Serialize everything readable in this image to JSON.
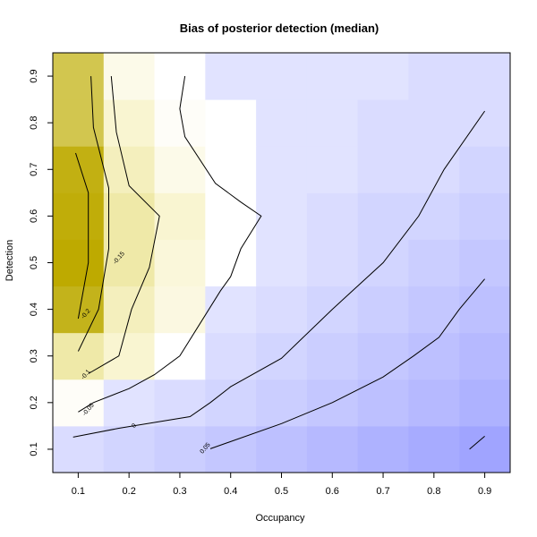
{
  "chart_data": {
    "type": "heatmap",
    "title": "Bias of posterior detection (median)",
    "xlabel": "Occupancy",
    "ylabel": "Detection",
    "x": [
      0.1,
      0.2,
      0.3,
      0.4,
      0.5,
      0.6,
      0.7,
      0.8,
      0.9
    ],
    "y": [
      0.1,
      0.2,
      0.3,
      0.4,
      0.5,
      0.6,
      0.7,
      0.8,
      0.9
    ],
    "xlim": [
      0.05,
      0.95
    ],
    "ylim": [
      0.05,
      0.95
    ],
    "xticks": [
      "0.1",
      "0.2",
      "0.3",
      "0.4",
      "0.5",
      "0.6",
      "0.7",
      "0.8",
      "0.9"
    ],
    "yticks": [
      "0.1",
      "0.2",
      "0.3",
      "0.4",
      "0.5",
      "0.6",
      "0.7",
      "0.8",
      "0.9"
    ],
    "z": [
      [
        -0.02,
        -0.03,
        -0.04,
        -0.05,
        -0.06,
        -0.07,
        -0.08,
        -0.09,
        -0.1
      ],
      [
        0.01,
        -0.01,
        -0.02,
        -0.03,
        -0.04,
        -0.05,
        -0.06,
        -0.07,
        -0.08
      ],
      [
        0.1,
        0.06,
        0.0,
        -0.02,
        -0.03,
        -0.04,
        -0.05,
        -0.06,
        -0.07
      ],
      [
        0.19,
        0.08,
        0.04,
        -0.01,
        -0.02,
        -0.03,
        -0.04,
        -0.05,
        -0.06
      ],
      [
        0.22,
        0.1,
        0.05,
        0.0,
        -0.01,
        -0.02,
        -0.03,
        -0.04,
        -0.05
      ],
      [
        0.21,
        0.1,
        0.06,
        0.0,
        -0.01,
        -0.02,
        -0.03,
        -0.03,
        -0.04
      ],
      [
        0.2,
        0.08,
        0.03,
        0.0,
        -0.01,
        -0.01,
        -0.02,
        -0.02,
        -0.03
      ],
      [
        0.15,
        0.06,
        0.01,
        0.0,
        -0.01,
        -0.01,
        -0.02,
        -0.02,
        -0.02
      ],
      [
        0.15,
        0.03,
        0.0,
        -0.01,
        -0.01,
        -0.01,
        -0.01,
        -0.02,
        -0.02
      ]
    ],
    "contour_labels": [
      {
        "text": "-0.2",
        "x": 0.115,
        "y": 0.39
      },
      {
        "text": "-0.15",
        "x": 0.18,
        "y": 0.51
      },
      {
        "text": "-0.1",
        "x": 0.115,
        "y": 0.26
      },
      {
        "text": "-0.05",
        "x": 0.12,
        "y": 0.185
      },
      {
        "text": "0",
        "x": 0.21,
        "y": 0.15
      },
      {
        "text": "0.05",
        "x": 0.35,
        "y": 0.102
      }
    ],
    "contours": [
      [
        [
          0.1,
          0.38
        ],
        [
          0.12,
          0.5
        ],
        [
          0.12,
          0.65
        ],
        [
          0.095,
          0.735
        ]
      ],
      [
        [
          0.1,
          0.31
        ],
        [
          0.14,
          0.4
        ],
        [
          0.16,
          0.53
        ],
        [
          0.16,
          0.66
        ],
        [
          0.13,
          0.79
        ],
        [
          0.125,
          0.9
        ]
      ],
      [
        [
          0.12,
          0.262
        ],
        [
          0.18,
          0.3
        ],
        [
          0.205,
          0.4
        ],
        [
          0.24,
          0.49
        ],
        [
          0.26,
          0.6
        ],
        [
          0.2,
          0.665
        ],
        [
          0.175,
          0.78
        ],
        [
          0.165,
          0.9
        ]
      ],
      [
        [
          0.1,
          0.18
        ],
        [
          0.13,
          0.2
        ],
        [
          0.2,
          0.23
        ],
        [
          0.25,
          0.26
        ],
        [
          0.3,
          0.3
        ],
        [
          0.34,
          0.37
        ],
        [
          0.38,
          0.44
        ],
        [
          0.4,
          0.47
        ],
        [
          0.42,
          0.53
        ],
        [
          0.46,
          0.6
        ],
        [
          0.42,
          0.63
        ],
        [
          0.37,
          0.67
        ],
        [
          0.31,
          0.77
        ],
        [
          0.3,
          0.83
        ],
        [
          0.31,
          0.9
        ]
      ],
      [
        [
          0.09,
          0.126
        ],
        [
          0.18,
          0.145
        ],
        [
          0.32,
          0.17
        ],
        [
          0.36,
          0.2
        ],
        [
          0.4,
          0.234
        ],
        [
          0.5,
          0.295
        ],
        [
          0.6,
          0.4
        ],
        [
          0.7,
          0.5
        ],
        [
          0.77,
          0.6
        ],
        [
          0.82,
          0.7
        ],
        [
          0.9,
          0.825
        ]
      ],
      [
        [
          0.36,
          0.101
        ],
        [
          0.5,
          0.155
        ],
        [
          0.6,
          0.2
        ],
        [
          0.7,
          0.255
        ],
        [
          0.76,
          0.3
        ],
        [
          0.81,
          0.34
        ],
        [
          0.85,
          0.4
        ],
        [
          0.9,
          0.465
        ]
      ],
      [
        [
          0.87,
          0.1
        ],
        [
          0.9,
          0.128
        ]
      ]
    ]
  }
}
